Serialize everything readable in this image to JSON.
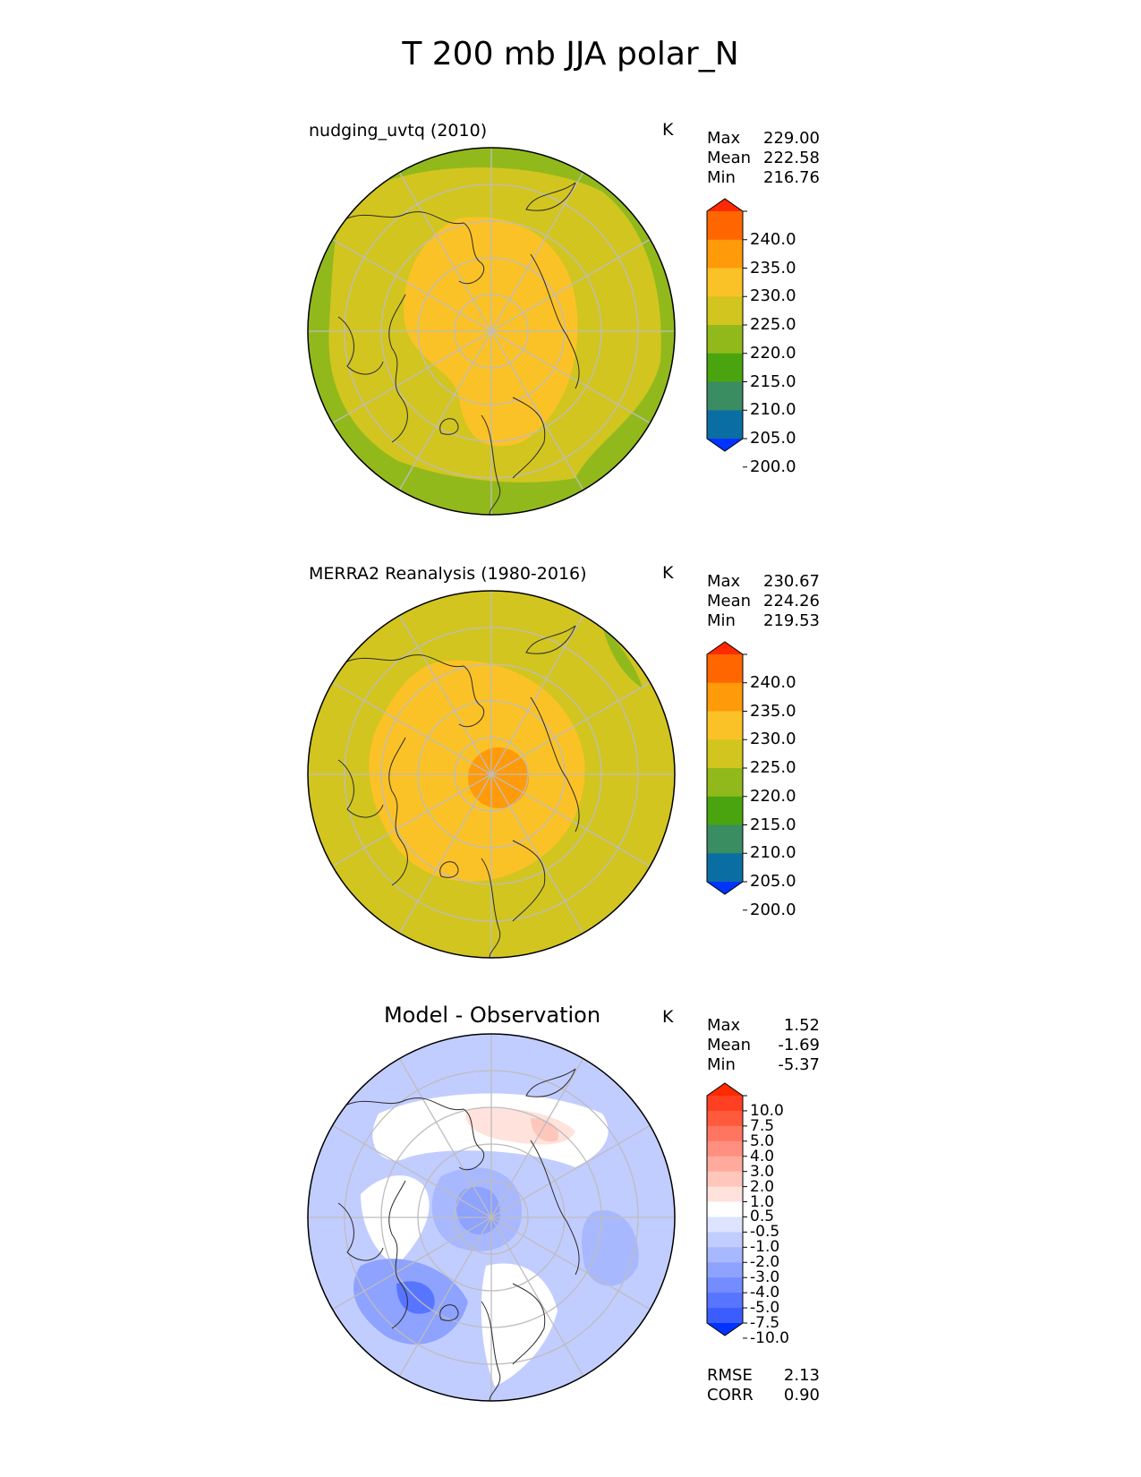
{
  "title": "T 200 mb JJA polar_N",
  "panels": [
    {
      "id": "test",
      "title": "nudging_uvtq (2010)",
      "units": "K",
      "stats": [
        {
          "label": "Max",
          "value": "229.00"
        },
        {
          "label": "Mean",
          "value": "222.58"
        },
        {
          "label": "Min",
          "value": "216.76"
        }
      ],
      "colorbar": {
        "levels": [
          "240.0",
          "235.0",
          "230.0",
          "225.0",
          "220.0",
          "215.0",
          "210.0",
          "205.0",
          "200.0"
        ],
        "colors": [
          "#ff2a00",
          "#ff6600",
          "#ff9a0a",
          "#fbc227",
          "#d2c520",
          "#92b91c",
          "#4aa40f",
          "#3a8c61",
          "#0a6ea3",
          "#0033ff"
        ]
      }
    },
    {
      "id": "reference",
      "title": "MERRA2 Reanalysis (1980-2016)",
      "units": "K",
      "stats": [
        {
          "label": "Max",
          "value": "230.67"
        },
        {
          "label": "Mean",
          "value": "224.26"
        },
        {
          "label": "Min",
          "value": "219.53"
        }
      ],
      "colorbar": {
        "levels": [
          "240.0",
          "235.0",
          "230.0",
          "225.0",
          "220.0",
          "215.0",
          "210.0",
          "205.0",
          "200.0"
        ],
        "colors": [
          "#ff2a00",
          "#ff6600",
          "#ff9a0a",
          "#fbc227",
          "#d2c520",
          "#92b91c",
          "#4aa40f",
          "#3a8c61",
          "#0a6ea3",
          "#0033ff"
        ]
      }
    },
    {
      "id": "difference",
      "title": "Model - Observation",
      "units": "K",
      "stats": [
        {
          "label": "Max",
          "value": "1.52"
        },
        {
          "label": "Mean",
          "value": "-1.69"
        },
        {
          "label": "Min",
          "value": "-5.37"
        }
      ],
      "colorbar": {
        "levels": [
          "10.0",
          "7.5",
          "5.0",
          "4.0",
          "3.0",
          "2.0",
          "1.0",
          "0.5",
          "-0.5",
          "-1.0",
          "-2.0",
          "-3.0",
          "-4.0",
          "-5.0",
          "-7.5",
          "-10.0"
        ],
        "colors": [
          "#ff2a00",
          "#ff3f22",
          "#ff5a3c",
          "#ff7560",
          "#ff9080",
          "#ffaa9c",
          "#ffc6bc",
          "#ffe2dc",
          "#ffffff",
          "#dde4ff",
          "#c2cdff",
          "#a8b8ff",
          "#8ea2ff",
          "#738cff",
          "#5775ff",
          "#3b5cff",
          "#0033ff"
        ]
      },
      "metrics": [
        {
          "label": "RMSE",
          "value": "2.13"
        },
        {
          "label": "CORR",
          "value": "0.90"
        }
      ]
    }
  ]
}
